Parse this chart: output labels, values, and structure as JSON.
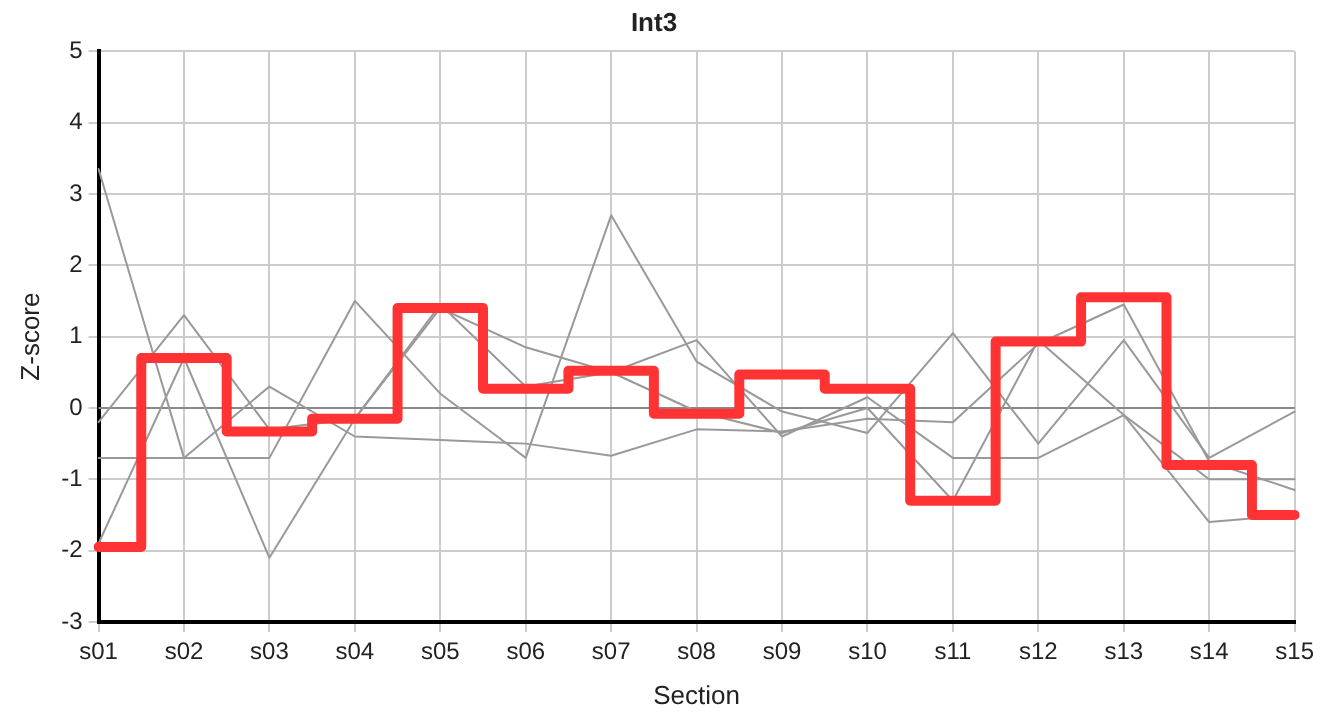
{
  "chart_data": {
    "type": "line",
    "title": "Int3",
    "xlabel": "Section",
    "ylabel": "Z-score",
    "categories": [
      "s01",
      "s02",
      "s03",
      "s04",
      "s05",
      "s06",
      "s07",
      "s08",
      "s09",
      "s10",
      "s11",
      "s12",
      "s13",
      "s14",
      "s15"
    ],
    "series": [
      {
        "color": "#999999",
        "values": [
          3.35,
          -0.7,
          0.3,
          -0.4,
          -0.45,
          -0.5,
          -0.67,
          -0.3,
          -0.33,
          -0.15,
          -0.2,
          0.9,
          1.45,
          -0.75,
          -1.15
        ]
      },
      {
        "color": "#999999",
        "values": [
          -0.2,
          1.3,
          -0.3,
          -0.15,
          1.4,
          0.85,
          0.5,
          -0.05,
          -0.35,
          0.0,
          -1.3,
          0.95,
          -0.1,
          -1.6,
          -1.5
        ]
      },
      {
        "color": "#999999",
        "values": [
          -0.7,
          -0.7,
          -0.7,
          1.5,
          0.2,
          -0.7,
          2.7,
          0.65,
          -0.05,
          -0.35,
          1.05,
          -0.5,
          0.95,
          -0.7,
          -0.05
        ]
      },
      {
        "color": "#999999",
        "values": [
          -1.9,
          0.7,
          -2.1,
          -0.15,
          1.45,
          0.3,
          0.5,
          0.95,
          -0.4,
          0.15,
          -0.7,
          -0.7,
          -0.1,
          -1.0,
          -1.0
        ]
      },
      {
        "type": "step",
        "color": "#ff3333",
        "values": [
          -1.95,
          0.7,
          -0.33,
          -0.15,
          1.4,
          0.27,
          0.52,
          -0.08,
          0.47,
          0.27,
          -1.3,
          0.93,
          1.55,
          -0.8,
          -1.5
        ]
      }
    ],
    "ylim": [
      -3,
      5
    ],
    "yticks": [
      -3,
      -2,
      -1,
      0,
      1,
      2,
      3,
      4,
      5
    ],
    "grid": true,
    "legend": false,
    "marker": "none",
    "ref_lines": [
      {
        "axis": "y",
        "value": 0,
        "color": "#888888"
      }
    ]
  }
}
